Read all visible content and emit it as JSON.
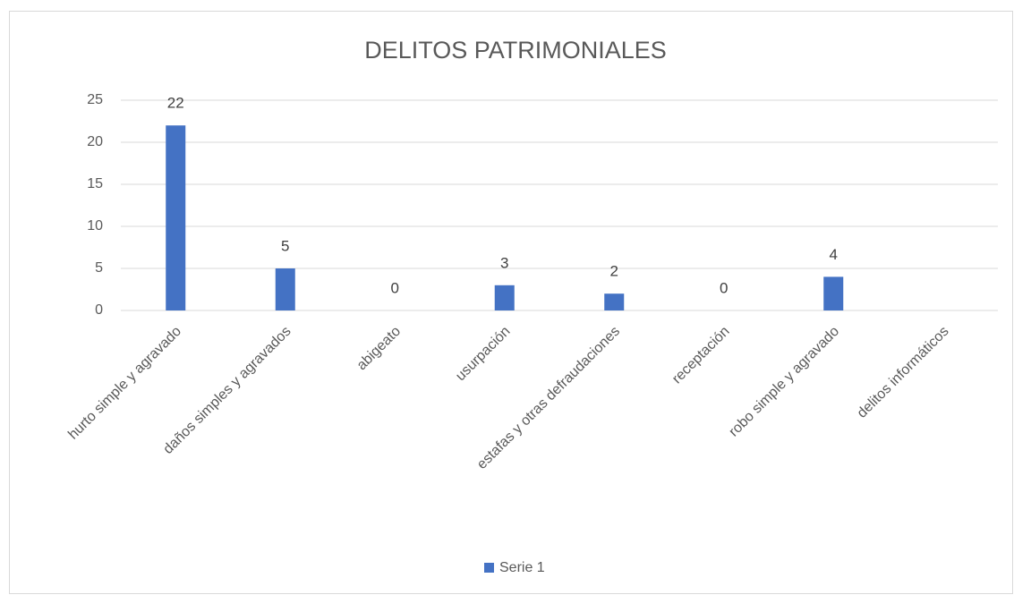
{
  "chart_data": {
    "type": "bar",
    "title": "DELITOS PATRIMONIALES",
    "categories": [
      "hurto simple y agravado",
      "daños simples y agravados",
      "abigeato",
      "usurpación",
      "estafas y otras defraudaciones",
      "receptación",
      "robo simple y agravado",
      "delitos informáticos"
    ],
    "series": [
      {
        "name": "Serie 1",
        "color": "#4472c4",
        "values": [
          22,
          5,
          0,
          3,
          2,
          0,
          4,
          null
        ]
      }
    ],
    "ylim": [
      0,
      25
    ],
    "yticks": [
      0,
      5,
      10,
      15,
      20,
      25
    ],
    "grid": true,
    "legend": "bottom",
    "data_labels": true
  }
}
